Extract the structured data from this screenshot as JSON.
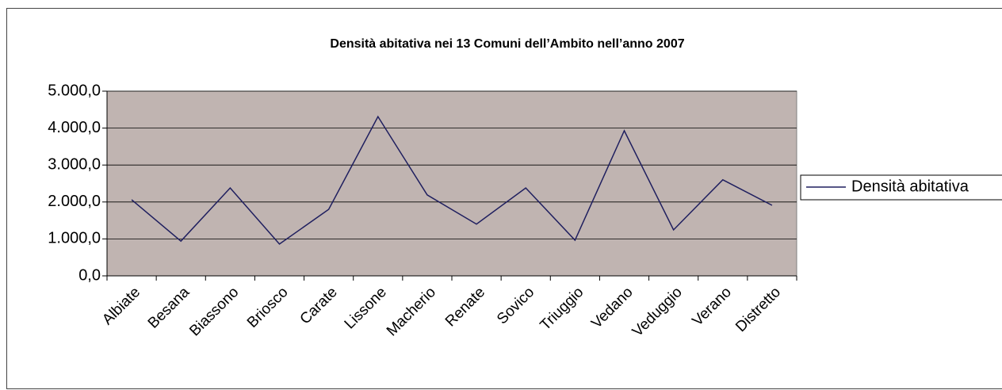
{
  "chart_data": {
    "type": "line",
    "title": "Densità abitativa nei 13 Comuni dell’Ambito nell’anno 2007",
    "categories": [
      "Albiate",
      "Besana",
      "Biassono",
      "Briosco",
      "Carate",
      "Lissone",
      "Macherio",
      "Renate",
      "Sovico",
      "Triuggio",
      "Vedano",
      "Veduggio",
      "Verano",
      "Distretto"
    ],
    "series": [
      {
        "name": "Densità abitativa",
        "color": "#1f1f5f",
        "values": [
          2060,
          940,
          2380,
          860,
          1800,
          4310,
          2190,
          1400,
          2380,
          965,
          3930,
          1245,
          2600,
          1910
        ]
      }
    ],
    "ylim": [
      0,
      5000
    ],
    "yticks": [
      {
        "value": 0,
        "label": "0,0"
      },
      {
        "value": 1000,
        "label": "1.000,0"
      },
      {
        "value": 2000,
        "label": "2.000,0"
      },
      {
        "value": 3000,
        "label": "3.000,0"
      },
      {
        "value": 4000,
        "label": "4.000,0"
      },
      {
        "value": 5000,
        "label": "5.000,0"
      }
    ],
    "grid": true,
    "legend": "right",
    "plot_background": "#c0b4b1"
  }
}
